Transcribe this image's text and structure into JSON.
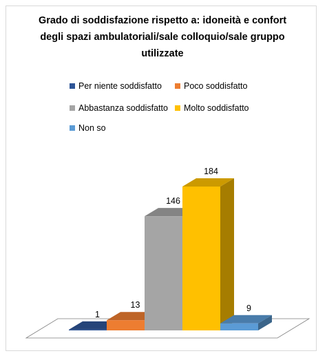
{
  "chart_data": {
    "type": "bar",
    "title": "Grado di soddisfazione rispetto a: idoneità e confort degli spazi ambulatoriali/sale colloquio/sale gruppo utilizzate",
    "title_lines": [
      "Grado di soddisfazione rispetto a: idoneità e confort",
      "degli spazi ambulatoriali/sale colloquio/sale gruppo",
      "utilizzate"
    ],
    "categories": [
      "Per niente soddisfatto",
      "Poco soddisfatto",
      "Abbastanza soddisfatto",
      "Molto soddisfatto",
      "Non so"
    ],
    "values": [
      1,
      13,
      146,
      184,
      9
    ],
    "colors": [
      "#2e5597",
      "#ed7d31",
      "#a5a5a5",
      "#ffc000",
      "#5b9bd5"
    ],
    "legend": {
      "position": "top"
    },
    "data_labels": true,
    "style": "3d-column"
  }
}
